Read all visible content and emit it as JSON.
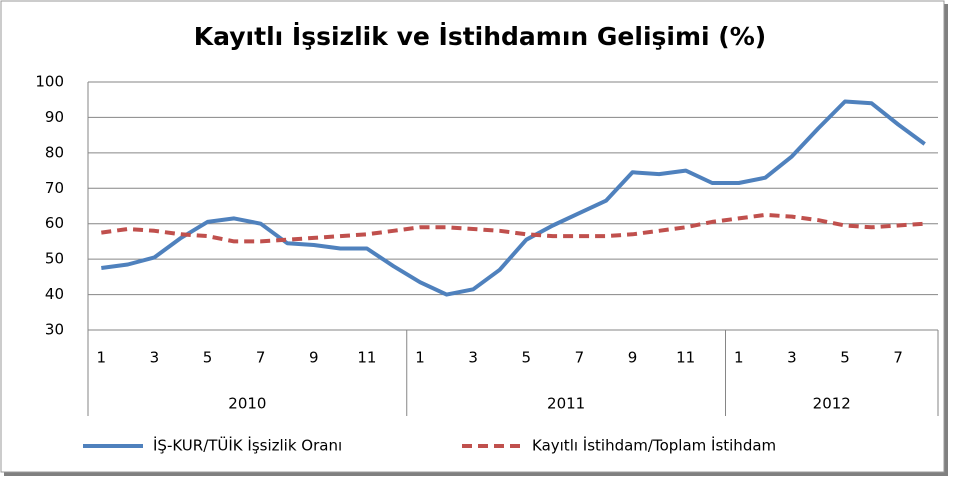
{
  "chart_data": {
    "type": "line",
    "title": "Kayıtlı İşsizlik ve İstihdamın Gelişimi (%)",
    "groups": [
      {
        "label": "2010",
        "categories": [
          "1",
          null,
          "3",
          null,
          "5",
          null,
          "7",
          null,
          "9",
          null,
          "11",
          null
        ]
      },
      {
        "label": "2011",
        "categories": [
          "1",
          null,
          "3",
          null,
          "5",
          null,
          "7",
          null,
          "9",
          null,
          "11",
          null
        ]
      },
      {
        "label": "2012",
        "categories": [
          "1",
          null,
          "3",
          null,
          "5",
          null,
          "7",
          null
        ]
      }
    ],
    "series": [
      {
        "name": "İŞ-KUR/TÜİK İşsizlik Oranı",
        "color": "#4f81bd",
        "dash": false,
        "values": [
          47.5,
          48.5,
          50.5,
          56,
          60.5,
          61.5,
          60,
          54.5,
          54,
          53,
          53,
          48,
          43.5,
          40,
          41.5,
          47,
          55.5,
          59.5,
          63,
          66.5,
          74.5,
          74,
          75,
          71.5,
          71.5,
          73,
          79,
          87,
          94.5,
          94,
          88,
          82.5
        ]
      },
      {
        "name": "Kayıtlı İstihdam/Toplam İstihdam",
        "color": "#c0504d",
        "dash": true,
        "values": [
          57.5,
          58.5,
          58,
          57,
          56.5,
          55,
          55,
          55.5,
          56,
          56.5,
          57,
          58,
          59,
          59,
          58.5,
          58,
          57,
          56.5,
          56.5,
          56.5,
          57,
          58,
          59,
          60.5,
          61.5,
          62.5,
          62,
          61,
          59.5,
          59,
          59.5,
          60
        ]
      }
    ],
    "ylim": [
      30,
      100
    ],
    "yticks": [
      30,
      40,
      50,
      60,
      70,
      80,
      90,
      100
    ],
    "grid": true,
    "legend": "bottom"
  }
}
